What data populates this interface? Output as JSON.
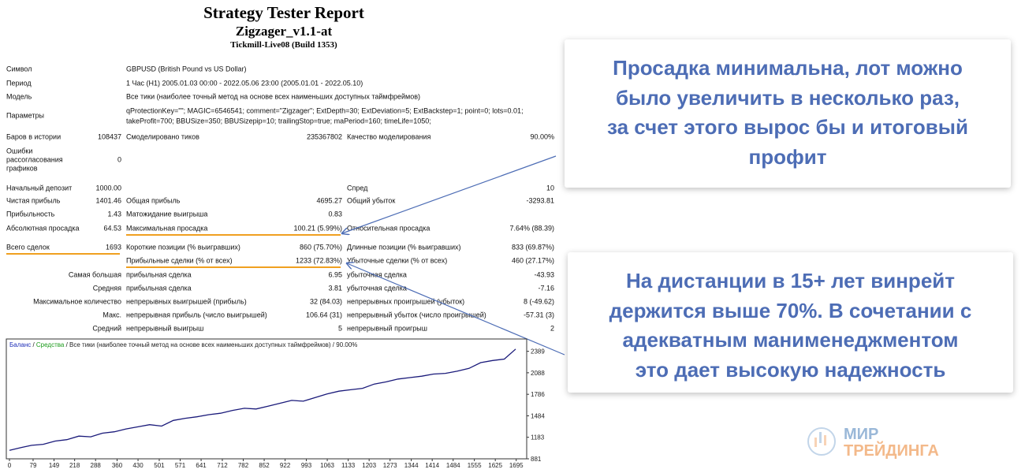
{
  "header": {
    "title": "Strategy Tester Report",
    "subtitle": "Zigzager_v1.1-at",
    "build": "Tickmill-Live08 (Build 1353)"
  },
  "info": [
    {
      "label": "Символ",
      "value": [
        "GBPUSD (British Pound vs US Dollar)"
      ]
    },
    {
      "label": "Период",
      "value": [
        "1 Час (H1) 2005.01.03 00:00 - 2022.05.06 23:00 (2005.01.01 - 2022.05.10)"
      ]
    },
    {
      "label": "Модель",
      "value": [
        "Все тики (наиболее точный метод на основе всех наименьших доступных таймфреймов)"
      ]
    },
    {
      "label": "Параметры",
      "value": [
        "qProtectionKey=\"\"; MAGIC=6546541; comment=\"Zigzager\"; ExtDepth=30; ExtDeviation=5; ExtBackstep=1; point=0; lots=0.01;",
        "takeProfit=700; BBUSize=350; BBUSizepip=10; trailingStop=true; maPeriod=160; timeLife=1050;"
      ]
    }
  ],
  "stats": [
    [
      "Баров в истории",
      "108437",
      "Смоделировано тиков",
      "235367802",
      "Качество моделирования",
      "90.00%"
    ],
    [
      "Ошибки рассогласования графиков",
      "0",
      null,
      null,
      null,
      null
    ],
    [
      "Начальный депозит",
      "1000.00",
      null,
      null,
      "Спред",
      "10"
    ],
    [
      "Чистая прибыль",
      "1401.46",
      "Общая прибыль",
      "4695.27",
      "Общий убыток",
      "-3293.81"
    ],
    [
      "Прибыльность",
      "1.43",
      "Матожидание выигрыша",
      "0.83",
      null,
      null
    ],
    [
      "Абсолютная просадка",
      "64.53",
      "Максимальная просадка",
      "100.21 (5.99%)",
      "Относительная просадка",
      "7.64% (88.39)"
    ],
    [
      "Всего сделок",
      "1693",
      "Короткие позиции (% выигравших)",
      "860 (75.70%)",
      "Длинные позиции (% выигравших)",
      "833 (69.87%)"
    ],
    [
      null,
      null,
      "Прибыльные сделки (% от всех)",
      "1233 (72.83%)",
      "Убыточные сделки (% от всех)",
      "460 (27.17%)"
    ],
    [
      "Самая большая",
      null,
      "прибыльная сделка",
      "6.95",
      "убыточная сделка",
      "-43.93"
    ],
    [
      "Средняя",
      null,
      "прибыльная сделка",
      "3.81",
      "убыточная сделка",
      "-7.16"
    ],
    [
      "Максимальное количество",
      null,
      "непрерывных выигрышей (прибыль)",
      "32 (84.03)",
      "непрерывных проигрышей (убыток)",
      "8 (-49.62)"
    ],
    [
      "Макс.",
      null,
      "непрерывная прибыль (число выигрышей)",
      "106.64 (31)",
      "непрерывный убыток (число проигрышей)",
      "-57.31 (3)"
    ],
    [
      "Средний",
      null,
      "непрерывный выигрыш",
      "5",
      "непрерывный проигрыш",
      "2"
    ]
  ],
  "chart_data": {
    "type": "line",
    "legend": [
      {
        "text": "Баланс",
        "color": "#1f2fb8"
      },
      {
        "text": " / ",
        "color": "#222222"
      },
      {
        "text": "Средства",
        "color": "#1a9a1a"
      },
      {
        "text": " / Все тики (наиболее точный метод на основе всех наименьших доступных таймфреймов) / 90.00%",
        "color": "#222222"
      }
    ],
    "x": [
      0,
      40,
      74,
      113,
      153,
      192,
      232,
      272,
      311,
      351,
      390,
      430,
      469,
      509,
      548,
      588,
      627,
      667,
      706,
      746,
      786,
      825,
      865,
      904,
      944,
      983,
      1023,
      1062,
      1102,
      1141,
      1181,
      1220,
      1260,
      1300,
      1339,
      1379,
      1418,
      1458,
      1497,
      1537,
      1576,
      1616,
      1655,
      1693
    ],
    "series": [
      {
        "color": "#1a1a7a",
        "values": [
          1000,
          1040,
          1070,
          1085,
          1130,
          1150,
          1200,
          1190,
          1240,
          1260,
          1300,
          1330,
          1360,
          1340,
          1420,
          1450,
          1470,
          1500,
          1520,
          1560,
          1590,
          1580,
          1620,
          1660,
          1700,
          1690,
          1740,
          1790,
          1830,
          1850,
          1870,
          1930,
          1960,
          2000,
          2020,
          2040,
          2070,
          2080,
          2110,
          2150,
          2230,
          2260,
          2280,
          2420
        ]
      }
    ],
    "xlim": [
      0,
      1730
    ],
    "ylim": [
      881,
      2540
    ],
    "xticks": [
      0,
      79,
      149,
      218,
      288,
      360,
      430,
      501,
      571,
      641,
      712,
      782,
      852,
      922,
      993,
      1063,
      1133,
      1203,
      1273,
      1344,
      1414,
      1484,
      1555,
      1625,
      1695
    ],
    "yticks": [
      881,
      1183,
      1484,
      1786,
      2088,
      2389
    ]
  },
  "callouts": [
    {
      "lines": [
        "Просадка минимальна, лот можно",
        "было увеличить в несколько раз,",
        "за счет этого вырос бы и итоговый",
        "профит"
      ]
    },
    {
      "lines": [
        "На дистанции в 15+ лет винрейт",
        "держится выше 70%. В сочетании с",
        "адекватным манименеджментом",
        "это дает высокую надежность"
      ]
    }
  ],
  "logo": {
    "line1": "МИР",
    "line2": "ТРЕЙДИНГА"
  }
}
